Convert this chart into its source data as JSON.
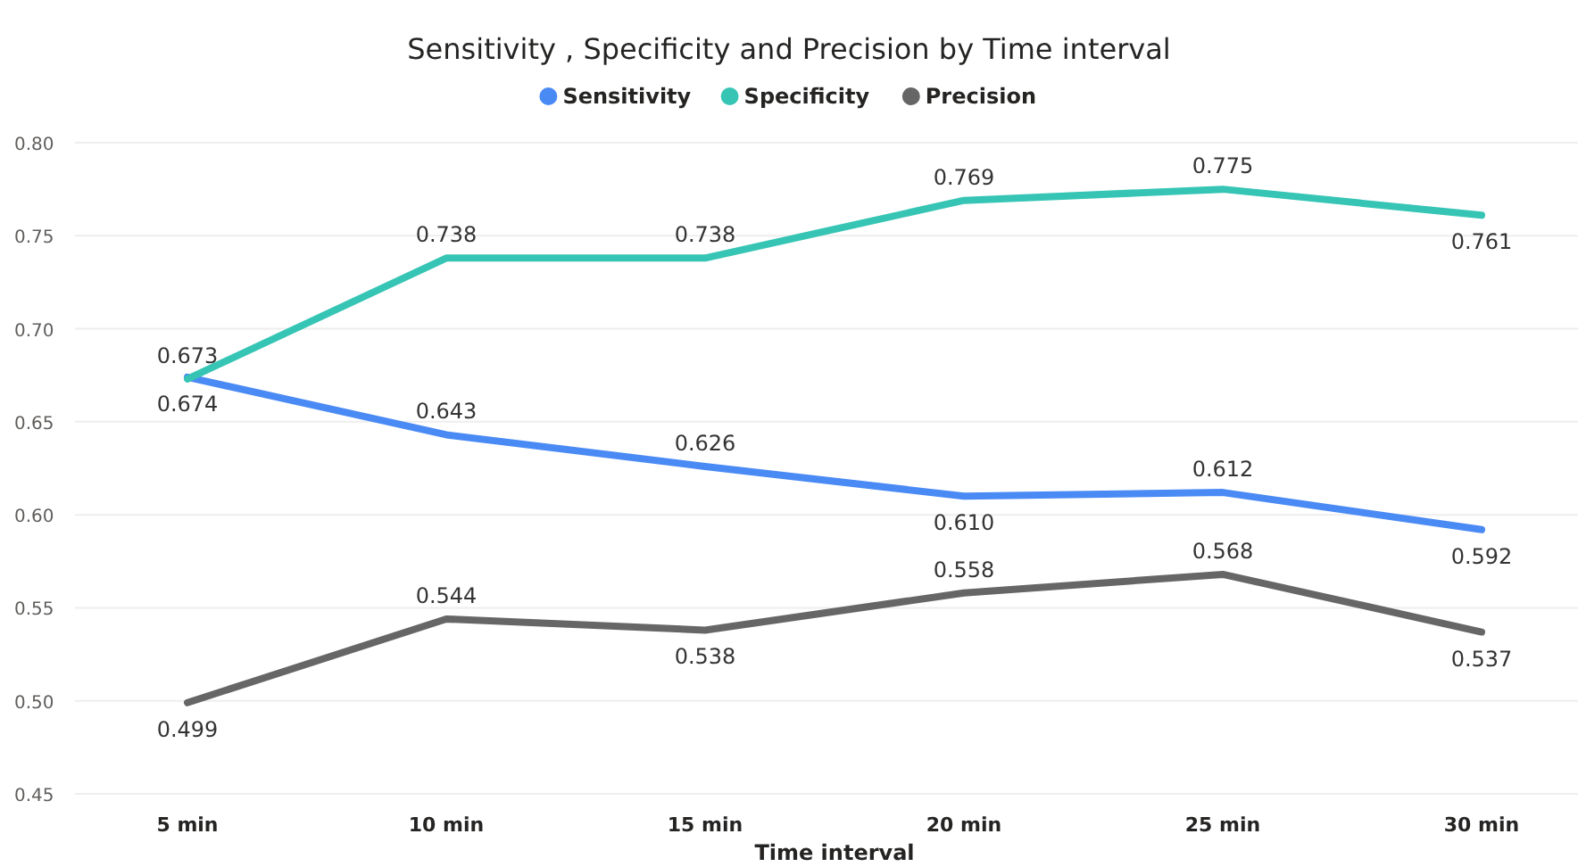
{
  "chart_data": {
    "type": "line",
    "title": "Sensitivity , Specificity and Precision by Time interval",
    "xlabel": "Time interval",
    "categories": [
      "5 min",
      "10 min",
      "15 min",
      "20 min",
      "25 min",
      "30 min"
    ],
    "series": [
      {
        "name": "Sensitivity",
        "color": "#4a8af4",
        "values": [
          0.674,
          0.643,
          0.626,
          0.61,
          0.612,
          0.592
        ],
        "value_labels": [
          "0.674",
          "0.643",
          "0.626",
          "0.610",
          "0.612",
          "0.592"
        ]
      },
      {
        "name": "Specificity",
        "color": "#36c5b5",
        "values": [
          0.673,
          0.738,
          0.738,
          0.769,
          0.775,
          0.761
        ],
        "value_labels": [
          "0.673",
          "0.738",
          "0.738",
          "0.769",
          "0.775",
          "0.761"
        ]
      },
      {
        "name": "Precision",
        "color": "#666666",
        "values": [
          0.499,
          0.544,
          0.538,
          0.558,
          0.568,
          0.537
        ],
        "value_labels": [
          "0.499",
          "0.544",
          "0.538",
          "0.558",
          "0.568",
          "0.537"
        ]
      }
    ],
    "ylim": [
      0.45,
      0.8
    ],
    "yticks": [
      {
        "value": 0.45,
        "label": "0.45"
      },
      {
        "value": 0.5,
        "label": "0.50"
      },
      {
        "value": 0.55,
        "label": "0.55"
      },
      {
        "value": 0.6,
        "label": "0.60"
      },
      {
        "value": 0.65,
        "label": "0.65"
      },
      {
        "value": 0.7,
        "label": "0.70"
      },
      {
        "value": 0.75,
        "label": "0.75"
      },
      {
        "value": 0.8,
        "label": "0.80"
      }
    ],
    "grid": "y",
    "legend": "top",
    "marker": "none",
    "line_style": "solid"
  }
}
